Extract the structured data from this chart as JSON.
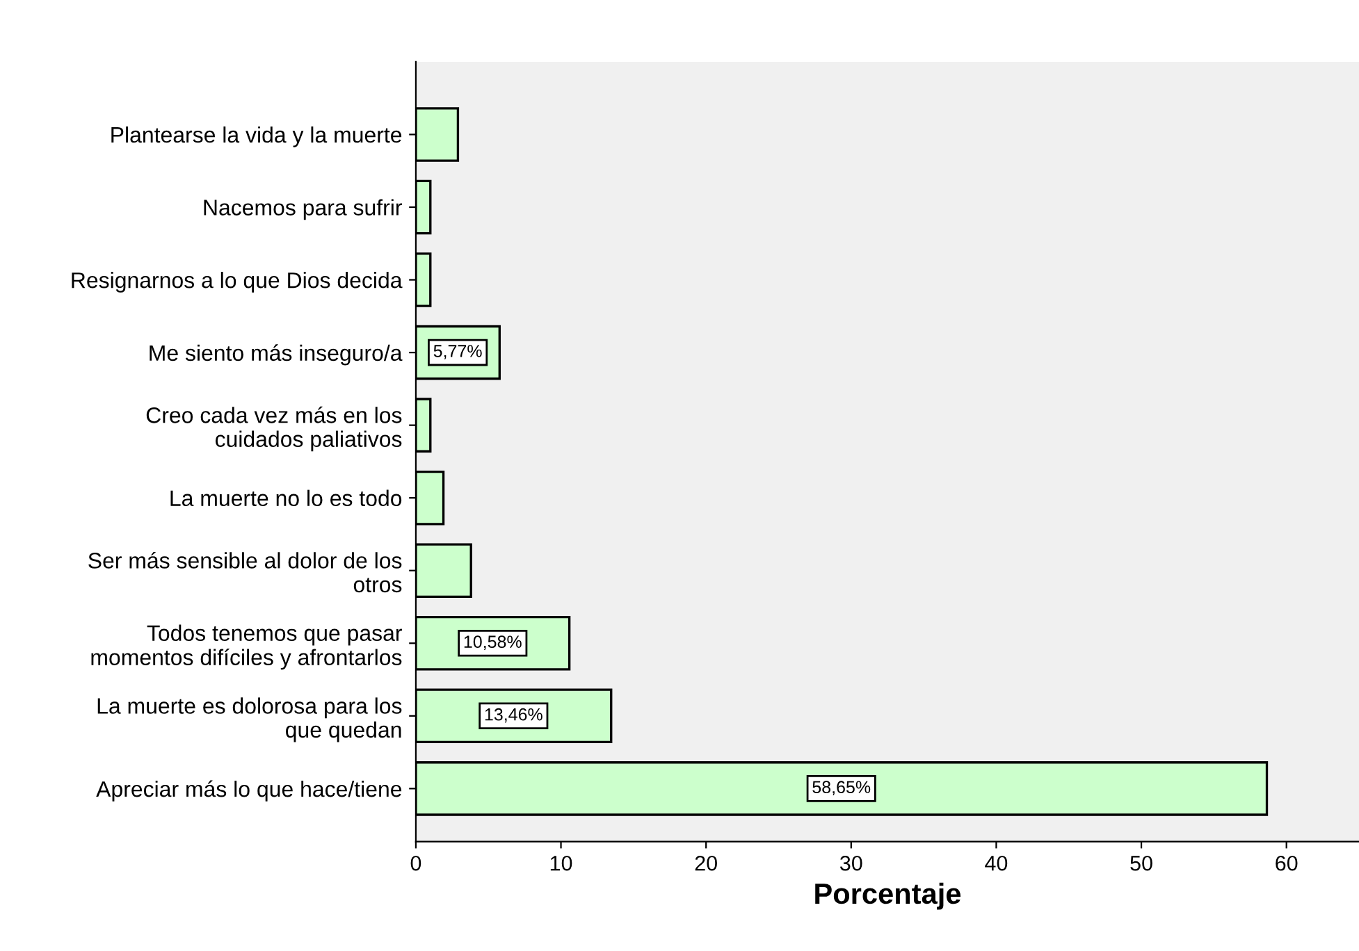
{
  "chart_data": {
    "type": "bar",
    "orientation": "horizontal",
    "xlabel": "Porcentaje",
    "categories": [
      "Plantearse la vida y la muerte",
      "Nacemos para sufrir",
      "Resignarnos a lo que Dios decida",
      "Me siento más inseguro/a",
      "Creo cada vez más en los\ncuidados paliativos",
      "La muerte no lo es todo",
      "Ser más sensible al dolor de los\notros",
      "Todos tenemos que pasar\nmomentos difíciles y afrontarlos",
      "La muerte es dolorosa para los\nque quedan",
      "Apreciar más lo que hace/tiene"
    ],
    "values": [
      2.9,
      1,
      1,
      5.77,
      1,
      1.9,
      3.8,
      10.58,
      13.46,
      58.65
    ],
    "value_labels": [
      null,
      null,
      null,
      "5,77%",
      null,
      null,
      null,
      "10,58%",
      "13,46%",
      "58,65%"
    ],
    "color": "#ccffcc",
    "xlim": [
      0,
      65
    ],
    "xticks": [
      0,
      10,
      20,
      30,
      40,
      50,
      60
    ],
    "grid": false
  }
}
